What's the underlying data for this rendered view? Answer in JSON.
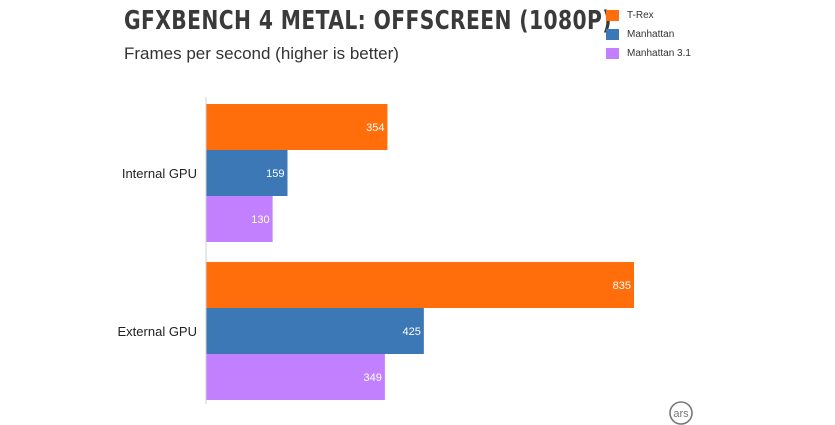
{
  "chart_data": {
    "type": "bar",
    "orientation": "horizontal",
    "title": "GFXBENCH 4 METAL: OFFSCREEN (1080P)",
    "subtitle": "Frames per second (higher is better)",
    "categories": [
      "Internal GPU",
      "External GPU"
    ],
    "series": [
      {
        "name": "T-Rex",
        "color": "#ff6e0a",
        "values": [
          354,
          835
        ]
      },
      {
        "name": "Manhattan",
        "color": "#3b78b5",
        "values": [
          159,
          425
        ]
      },
      {
        "name": "Manhattan 3.1",
        "color": "#c280ff",
        "values": [
          130,
          349
        ]
      }
    ],
    "xlim": [
      0,
      835
    ],
    "grid": false,
    "legend_position": "top-right",
    "data_labels": "inside-end"
  },
  "watermark": {
    "text": "ars",
    "icon": "ars-logo-icon"
  }
}
